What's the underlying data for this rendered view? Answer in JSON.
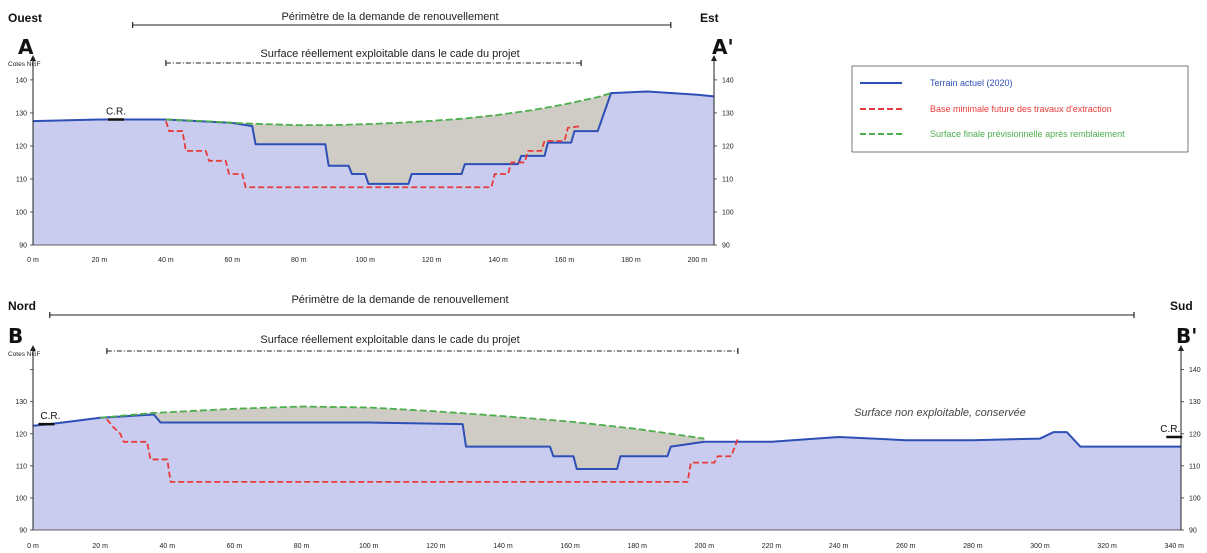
{
  "chart_data": [
    {
      "type": "area",
      "name": "A-A'",
      "label_left": "A",
      "label_right": "A'",
      "dir_left": "Ouest",
      "dir_right": "Est",
      "ylabel": "Cotes NGF",
      "perimeter_label": "Périmètre de la demande de renouvellement",
      "exploitable_label": "Surface réellement exploitable dans le cade du projet",
      "perimeter_range": [
        30,
        192
      ],
      "exploitable_range": [
        40,
        165
      ],
      "xlim": [
        0,
        205
      ],
      "ylim": [
        90,
        143
      ],
      "xticks": [
        0,
        20,
        40,
        60,
        80,
        100,
        120,
        140,
        160,
        180,
        200
      ],
      "xtick_labels": [
        "0 m",
        "20 m",
        "40 m",
        "60 m",
        "80 m",
        "100 m",
        "120 m",
        "140 m",
        "160 m",
        "180 m",
        "200 m"
      ],
      "yticks": [
        90,
        100,
        110,
        120,
        130,
        140
      ],
      "ytick_labels": [
        "90",
        "100",
        "110",
        "120",
        "130",
        "140"
      ],
      "ytick_labels_right": [
        "90",
        "100",
        "110",
        "120",
        "130",
        "140"
      ],
      "cr_label": "C.R.",
      "cr_points": [
        {
          "x": 25,
          "y": 128
        }
      ],
      "series": [
        {
          "name": "Terrain actuel (2020)",
          "color": "#2e4fb5",
          "style": "solid",
          "x": [
            0,
            20,
            40,
            60,
            66,
            67,
            88,
            89,
            95,
            96,
            100,
            101,
            113,
            114,
            129,
            130,
            146,
            147,
            154,
            155,
            162,
            163,
            170,
            174,
            185,
            200,
            205
          ],
          "y": [
            127.5,
            128,
            128,
            127,
            126,
            120.5,
            120.5,
            114,
            114,
            111.5,
            111.5,
            108.5,
            108.5,
            111.5,
            111.5,
            114.5,
            114.5,
            117,
            117,
            121,
            121,
            124.5,
            124.5,
            136,
            136.5,
            135.5,
            135
          ]
        },
        {
          "name": "Base minimale future des travaux d'extraction",
          "color": "#e83a3a",
          "style": "dashed",
          "x": [
            40,
            41,
            45,
            46,
            52,
            53,
            58,
            59,
            63,
            64,
            138,
            139,
            143,
            144,
            148,
            149,
            153,
            154,
            160,
            161,
            165
          ],
          "y": [
            127.5,
            124.5,
            124.5,
            118.5,
            118.5,
            115.5,
            115.5,
            111.5,
            111.5,
            107.5,
            107.5,
            111.5,
            111.5,
            115,
            115,
            118.5,
            118.5,
            121.5,
            121.5,
            125.5,
            126
          ]
        },
        {
          "name": "Surface finale prévisionnelle après remblaiement",
          "color": "#4cae4c",
          "style": "dashed",
          "x": [
            40,
            50,
            60,
            70,
            80,
            90,
            100,
            110,
            120,
            130,
            140,
            150,
            160,
            170,
            174
          ],
          "y": [
            128,
            127.6,
            127,
            126.6,
            126.3,
            126.3,
            126.6,
            127,
            127.6,
            128.3,
            129.4,
            130.8,
            132.6,
            134.8,
            136
          ]
        }
      ]
    },
    {
      "type": "area",
      "name": "B-B'",
      "label_left": "B",
      "label_right": "B'",
      "dir_left": "Nord",
      "dir_right": "Sud",
      "ylabel": "Cotes NGF",
      "perimeter_label": "Périmètre de la demande de renouvellement",
      "exploitable_label": "Surface réellement exploitable dans le cade du projet",
      "perimeter_range": [
        5,
        328
      ],
      "exploitable_range": [
        22,
        210
      ],
      "xlim": [
        0,
        342
      ],
      "ylim": [
        90,
        143
      ],
      "xticks": [
        0,
        20,
        40,
        60,
        80,
        100,
        120,
        140,
        160,
        180,
        200,
        220,
        240,
        260,
        280,
        300,
        320,
        340
      ],
      "xtick_labels": [
        "0 m",
        "20 m",
        "40 m",
        "60 m",
        "80 m",
        "100 m",
        "120 m",
        "140 m",
        "160 m",
        "180 m",
        "200 m",
        "220 m",
        "240 m",
        "260 m",
        "280 m",
        "300 m",
        "320 m",
        "340 m"
      ],
      "yticks": [
        90,
        100,
        110,
        120,
        130,
        140
      ],
      "ytick_labels": [
        "90",
        "100",
        "110",
        "120",
        "130",
        ""
      ],
      "ytick_labels_right": [
        "90",
        "100",
        "110",
        "120",
        "130",
        "140"
      ],
      "cr_label": "C.R.",
      "cr_points": [
        {
          "x": 4,
          "y": 123
        },
        {
          "x": 340,
          "y": 119
        }
      ],
      "annotation": "Surface non exploitable, conservée",
      "series": [
        {
          "name": "Terrain actuel (2020)",
          "color": "#2e4fb5",
          "style": "solid",
          "x": [
            0,
            5,
            20,
            36,
            38,
            60,
            100,
            128,
            129,
            154,
            155,
            161,
            162,
            174,
            175,
            189,
            190,
            200,
            220,
            240,
            260,
            280,
            300,
            304,
            308,
            312,
            342
          ],
          "y": [
            122.5,
            123,
            125,
            126,
            123.5,
            123.5,
            123.5,
            123,
            116,
            116,
            113,
            113,
            109,
            109,
            113,
            113,
            116,
            117.5,
            117.5,
            119,
            118,
            118,
            118.5,
            120.5,
            120.5,
            116,
            116
          ]
        },
        {
          "name": "Base minimale future des travaux d'extraction",
          "color": "#e83a3a",
          "style": "dashed",
          "x": [
            22,
            24,
            26,
            27,
            34,
            35,
            40,
            41,
            195,
            196,
            203,
            204,
            208,
            210
          ],
          "y": [
            124.5,
            122,
            120,
            117.5,
            117.5,
            112,
            112,
            105,
            105,
            111,
            111,
            113,
            113,
            118.5
          ]
        },
        {
          "name": "Surface finale prévisionnelle après remblaiement",
          "color": "#4cae4c",
          "style": "dashed",
          "x": [
            20,
            36,
            60,
            80,
            100,
            120,
            140,
            160,
            180,
            200
          ],
          "y": [
            125,
            126.5,
            127.8,
            128.5,
            128.2,
            127,
            125.5,
            123.8,
            121.5,
            118.5
          ]
        }
      ]
    }
  ],
  "legend": {
    "items": [
      {
        "label": "Terrain actuel (2020)",
        "color": "#2e4fb5",
        "style": "solid"
      },
      {
        "label": "Base minimale future des travaux d'extraction",
        "color": "#e83a3a",
        "style": "dashed"
      },
      {
        "label": "Surface finale prévisionnelle après remblaiement",
        "color": "#4cae4c",
        "style": "dashed"
      }
    ]
  },
  "colors": {
    "ground_fill": "#c9ccef",
    "backfill": "#cfccc6",
    "arrow": "#222222"
  }
}
